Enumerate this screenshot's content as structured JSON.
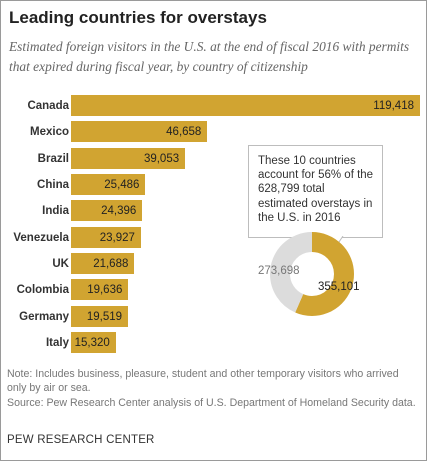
{
  "chart_data": {
    "type": "bar",
    "orientation": "horizontal",
    "title": "Leading countries for overstays",
    "subtitle": "Estimated foreign visitors in the U.S. at the end of fiscal 2016 with permits that expired during fiscal year, by country of citizenship",
    "categories": [
      "Canada",
      "Mexico",
      "Brazil",
      "China",
      "India",
      "Venezuela",
      "UK",
      "Colombia",
      "Germany",
      "Italy"
    ],
    "values": [
      119418,
      46658,
      39053,
      25486,
      24396,
      23927,
      21688,
      19636,
      19519,
      15320
    ],
    "value_labels": [
      "119,418",
      "46,658",
      "39,053",
      "25,486",
      "24,396",
      "23,927",
      "21,688",
      "19,636",
      "19,519",
      "15,320"
    ],
    "xlim": [
      0,
      119418
    ],
    "grid": false,
    "bar_color": "#d1a431",
    "annotation": "These 10 countries account for 56% of the 628,799 total estimated overstays in the U.S. in 2016",
    "donut": {
      "type": "pie",
      "values": [
        355101,
        273698
      ],
      "value_labels": [
        "355,101",
        "273,698"
      ],
      "colors": [
        "#d1a431",
        "#dcdcdc"
      ]
    }
  },
  "footer": {
    "note": "Note: Includes business, pleasure, student and other temporary visitors who arrived only by air or sea.",
    "source": "Source: Pew Research Center analysis of U.S. Department of Homeland Security data.",
    "organization": "PEW RESEARCH CENTER"
  }
}
